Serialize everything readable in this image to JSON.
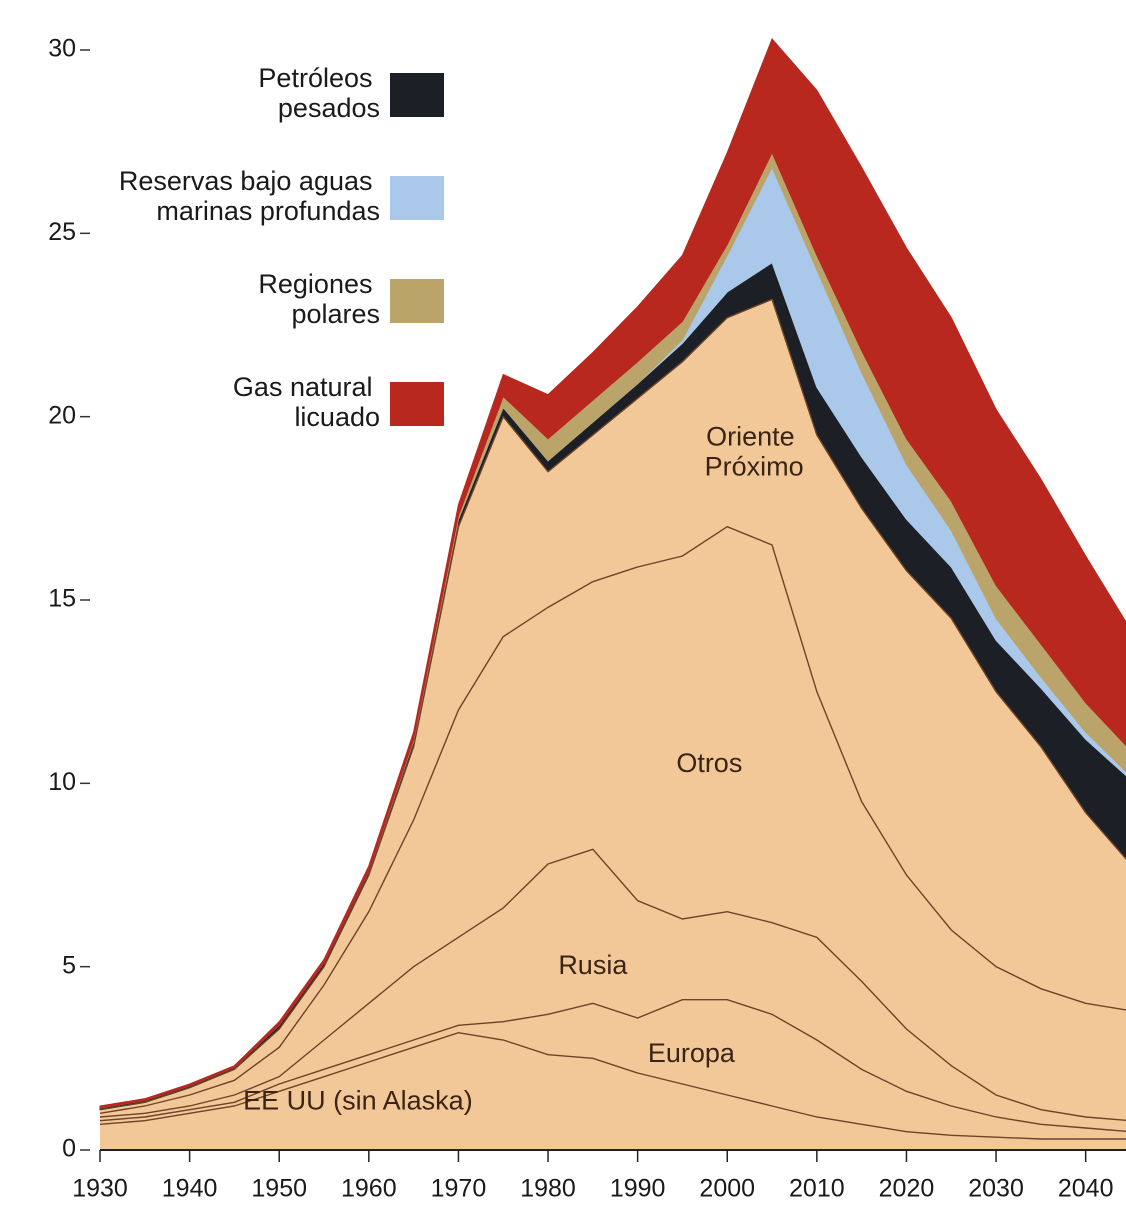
{
  "chart_data": {
    "type": "stacked-area",
    "x": [
      1930,
      1935,
      1940,
      1945,
      1950,
      1955,
      1960,
      1965,
      1970,
      1975,
      1980,
      1985,
      1990,
      1995,
      2000,
      2005,
      2010,
      2015,
      2020,
      2025,
      2030,
      2035,
      2040,
      2045
    ],
    "xlim": [
      1930,
      2044.5
    ],
    "xticks": [
      1930,
      1940,
      1950,
      1960,
      1970,
      1980,
      1990,
      2000,
      2010,
      2020,
      2030,
      2040
    ],
    "ylim": [
      0,
      30
    ],
    "yticks": [
      0,
      5,
      10,
      15,
      20,
      25,
      30
    ],
    "series": [
      {
        "name": "EE UU (sin Alaska)",
        "color": "#f3c898",
        "values": [
          0.7,
          0.8,
          1.0,
          1.2,
          1.6,
          2.0,
          2.4,
          2.8,
          3.2,
          3.0,
          2.6,
          2.5,
          2.1,
          1.8,
          1.5,
          1.2,
          0.9,
          0.7,
          0.5,
          0.4,
          0.35,
          0.3,
          0.3,
          0.3
        ]
      },
      {
        "name": "Europa",
        "color": "#f3c898",
        "values": [
          0.1,
          0.1,
          0.1,
          0.1,
          0.2,
          0.2,
          0.2,
          0.2,
          0.2,
          0.5,
          1.1,
          1.5,
          1.5,
          2.3,
          2.6,
          2.5,
          2.1,
          1.5,
          1.1,
          0.8,
          0.55,
          0.4,
          0.3,
          0.2
        ]
      },
      {
        "name": "Rusia",
        "color": "#f3c898",
        "values": [
          0.1,
          0.1,
          0.1,
          0.2,
          0.2,
          0.8,
          1.4,
          2.0,
          2.4,
          3.1,
          4.1,
          4.2,
          3.2,
          2.2,
          2.4,
          2.5,
          2.8,
          2.4,
          1.7,
          1.1,
          0.6,
          0.4,
          0.3,
          0.3
        ]
      },
      {
        "name": "Otros",
        "color": "#f3c898",
        "values": [
          0.1,
          0.2,
          0.3,
          0.4,
          0.8,
          1.5,
          2.5,
          4.0,
          6.2,
          7.4,
          7.0,
          7.3,
          9.1,
          9.9,
          10.5,
          10.3,
          6.7,
          4.9,
          4.2,
          3.7,
          3.5,
          3.3,
          3.1,
          3.0
        ]
      },
      {
        "name": "Oriente Próximo",
        "color": "#f3c898",
        "values": [
          0.1,
          0.1,
          0.2,
          0.3,
          0.5,
          0.5,
          1.0,
          2.0,
          5.0,
          6.0,
          3.7,
          4.0,
          4.6,
          5.3,
          5.7,
          6.7,
          7.0,
          8.0,
          8.3,
          8.5,
          7.5,
          6.6,
          5.2,
          4.0
        ]
      },
      {
        "name": "Petróleos pesados",
        "color": "#1c1f26",
        "values": [
          0.05,
          0.05,
          0.05,
          0.05,
          0.1,
          0.1,
          0.1,
          0.15,
          0.2,
          0.25,
          0.3,
          0.35,
          0.4,
          0.5,
          0.7,
          1.0,
          1.3,
          1.4,
          1.4,
          1.4,
          1.4,
          1.6,
          2.0,
          2.3
        ]
      },
      {
        "name": "Reservas bajo aguas marinas profundas",
        "color": "#a9c8ea",
        "values": [
          0,
          0,
          0,
          0,
          0,
          0,
          0,
          0,
          0,
          0,
          0,
          0,
          0,
          0.1,
          1.0,
          2.6,
          3.2,
          2.3,
          1.5,
          1.0,
          0.6,
          0.3,
          0.2,
          0.1
        ]
      },
      {
        "name": "Regiones polares",
        "color": "#bba46a",
        "values": [
          0,
          0,
          0,
          0,
          0,
          0,
          0,
          0.05,
          0.1,
          0.3,
          0.6,
          0.6,
          0.6,
          0.5,
          0.3,
          0.4,
          0.4,
          0.6,
          0.7,
          0.8,
          0.9,
          0.9,
          0.8,
          0.7
        ]
      },
      {
        "name": "Gas natural licuado",
        "color": "#b8281e",
        "values": [
          0.05,
          0.05,
          0.05,
          0.05,
          0.1,
          0.1,
          0.15,
          0.2,
          0.3,
          0.6,
          1.2,
          1.3,
          1.5,
          1.8,
          2.5,
          3.1,
          4.5,
          5.0,
          5.2,
          5.0,
          4.8,
          4.5,
          4.0,
          3.3
        ]
      }
    ]
  }
}
